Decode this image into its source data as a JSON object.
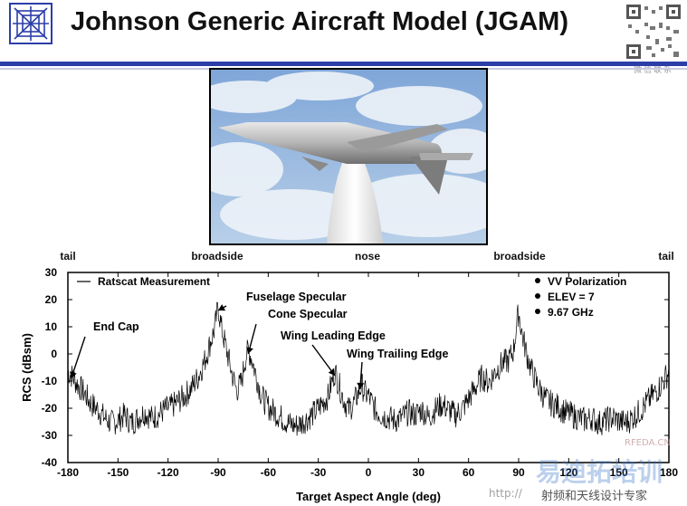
{
  "header": {
    "title": "Johnson Generic Aircraft Model (JGAM)",
    "qr_caption": "微信联系",
    "accent_color": "#2c3ea8"
  },
  "photo": {
    "icon": "aircraft-model-photo"
  },
  "aspect_markers": [
    {
      "label": "tail",
      "angle": -180
    },
    {
      "label": "broadside",
      "angle": -90
    },
    {
      "label": "nose",
      "angle": 0
    },
    {
      "label": "broadside",
      "angle": 90
    },
    {
      "label": "tail",
      "angle": 180
    }
  ],
  "chart_data": {
    "type": "line",
    "title": "",
    "xlabel": "Target Aspect Angle (deg)",
    "ylabel": "RCS (dBsm)",
    "xlim": [
      -180,
      180
    ],
    "ylim": [
      -40,
      30
    ],
    "xticks": [
      -180,
      -150,
      -120,
      -90,
      -60,
      -30,
      0,
      30,
      60,
      90,
      120,
      150,
      180
    ],
    "yticks": [
      30,
      20,
      10,
      0,
      -10,
      -20,
      -30,
      -40
    ],
    "grid": false,
    "legend": {
      "series_label": "Ratscat Measurement",
      "placement": "top-left"
    },
    "conditions": [
      "VV Polarization",
      "ELEV = 7",
      "9.67 GHz"
    ],
    "annotations": [
      {
        "label": "Fuselage Specular",
        "x": -90,
        "y": 16
      },
      {
        "label": "Cone Specular",
        "x": -72,
        "y": 0
      },
      {
        "label": "End Cap",
        "x": -178,
        "y": -9
      },
      {
        "label": "Wing Leading Edge",
        "x": -20,
        "y": -8
      },
      {
        "label": "Wing Trailing Edge",
        "x": -5,
        "y": -13
      }
    ],
    "series": [
      {
        "name": "Ratscat Measurement",
        "points": [
          [
            -180,
            -8
          ],
          [
            -177,
            -10
          ],
          [
            -174,
            -13
          ],
          [
            -170,
            -16
          ],
          [
            -166,
            -20
          ],
          [
            -162,
            -22
          ],
          [
            -158,
            -25
          ],
          [
            -154,
            -27
          ],
          [
            -150,
            -26
          ],
          [
            -146,
            -24
          ],
          [
            -142,
            -27
          ],
          [
            -138,
            -25
          ],
          [
            -134,
            -23
          ],
          [
            -130,
            -25
          ],
          [
            -126,
            -24
          ],
          [
            -122,
            -22
          ],
          [
            -118,
            -21
          ],
          [
            -114,
            -19
          ],
          [
            -110,
            -17
          ],
          [
            -106,
            -14
          ],
          [
            -102,
            -10
          ],
          [
            -98,
            -4
          ],
          [
            -95,
            2
          ],
          [
            -92,
            8
          ],
          [
            -90,
            16
          ],
          [
            -88,
            8
          ],
          [
            -85,
            0
          ],
          [
            -82,
            -8
          ],
          [
            -79,
            -15
          ],
          [
            -76,
            -12
          ],
          [
            -74,
            -4
          ],
          [
            -72,
            0
          ],
          [
            -70,
            -3
          ],
          [
            -67,
            -10
          ],
          [
            -64,
            -17
          ],
          [
            -60,
            -21
          ],
          [
            -56,
            -23
          ],
          [
            -52,
            -25
          ],
          [
            -48,
            -27
          ],
          [
            -44,
            -28
          ],
          [
            -40,
            -27
          ],
          [
            -36,
            -25
          ],
          [
            -32,
            -23
          ],
          [
            -28,
            -20
          ],
          [
            -24,
            -17
          ],
          [
            -22,
            -12
          ],
          [
            -20,
            -8
          ],
          [
            -18,
            -12
          ],
          [
            -15,
            -18
          ],
          [
            -12,
            -22
          ],
          [
            -9,
            -20
          ],
          [
            -6,
            -16
          ],
          [
            -4,
            -13
          ],
          [
            -2,
            -16
          ],
          [
            0,
            -17
          ],
          [
            4,
            -22
          ],
          [
            8,
            -24
          ],
          [
            12,
            -25
          ],
          [
            16,
            -26
          ],
          [
            20,
            -25
          ],
          [
            24,
            -23
          ],
          [
            28,
            -24
          ],
          [
            32,
            -22
          ],
          [
            36,
            -25
          ],
          [
            40,
            -22
          ],
          [
            44,
            -20
          ],
          [
            48,
            -22
          ],
          [
            52,
            -24
          ],
          [
            56,
            -22
          ],
          [
            60,
            -18
          ],
          [
            64,
            -14
          ],
          [
            68,
            -10
          ],
          [
            72,
            -12
          ],
          [
            76,
            -8
          ],
          [
            80,
            -5
          ],
          [
            84,
            -4
          ],
          [
            87,
            0
          ],
          [
            89,
            10
          ],
          [
            90,
            14
          ],
          [
            92,
            6
          ],
          [
            95,
            -2
          ],
          [
            98,
            -8
          ],
          [
            102,
            -14
          ],
          [
            106,
            -18
          ],
          [
            110,
            -20
          ],
          [
            114,
            -21
          ],
          [
            118,
            -23
          ],
          [
            122,
            -24
          ],
          [
            126,
            -25
          ],
          [
            130,
            -26
          ],
          [
            134,
            -25
          ],
          [
            138,
            -27
          ],
          [
            142,
            -26
          ],
          [
            146,
            -25
          ],
          [
            150,
            -26
          ],
          [
            154,
            -27
          ],
          [
            158,
            -25
          ],
          [
            162,
            -23
          ],
          [
            166,
            -20
          ],
          [
            170,
            -17
          ],
          [
            174,
            -14
          ],
          [
            177,
            -11
          ],
          [
            180,
            -8
          ]
        ]
      }
    ]
  },
  "watermarks": {
    "cn_brand": "易迪拓培训",
    "site": "RFEDA.CN",
    "url": "http://",
    "slogan": "射频和天线设计专家"
  }
}
